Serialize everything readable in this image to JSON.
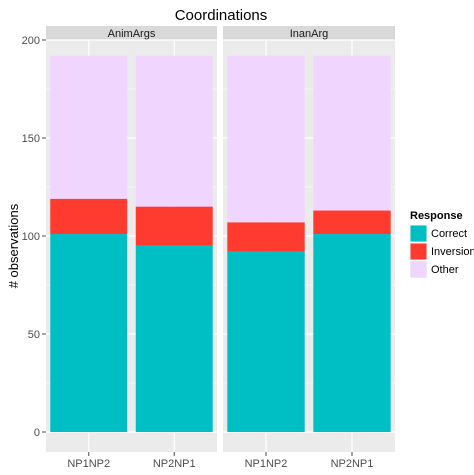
{
  "chart_data": {
    "type": "bar",
    "stacked": true,
    "title": "Coordinations",
    "ylabel": "# observations",
    "xlabel": "",
    "ylim": [
      0,
      200
    ],
    "yticks": [
      0,
      50,
      100,
      150,
      200
    ],
    "categories": [
      "NP1NP2",
      "NP2NP1"
    ],
    "facets": [
      {
        "name": "AnimArgs",
        "series": [
          {
            "name": "Correct",
            "values": [
              101,
              95
            ]
          },
          {
            "name": "Inversion",
            "values": [
              18,
              20
            ]
          },
          {
            "name": "Other",
            "values": [
              73,
              77
            ]
          }
        ]
      },
      {
        "name": "InanArg",
        "series": [
          {
            "name": "Correct",
            "values": [
              92,
              101
            ]
          },
          {
            "name": "Inversion",
            "values": [
              15,
              12
            ]
          },
          {
            "name": "Other",
            "values": [
              85,
              79
            ]
          }
        ]
      }
    ],
    "legend": {
      "title": "Response",
      "position": "right",
      "entries": [
        "Correct",
        "Inversion",
        "Other"
      ]
    },
    "colors": {
      "Correct": "#00bfc4",
      "Inversion": "#ff3b2f",
      "Other": "#f0d6ff",
      "panel_background": "#ebebeb",
      "strip_background": "#d9d9d9",
      "grid": "#ffffff"
    },
    "grid": true
  }
}
